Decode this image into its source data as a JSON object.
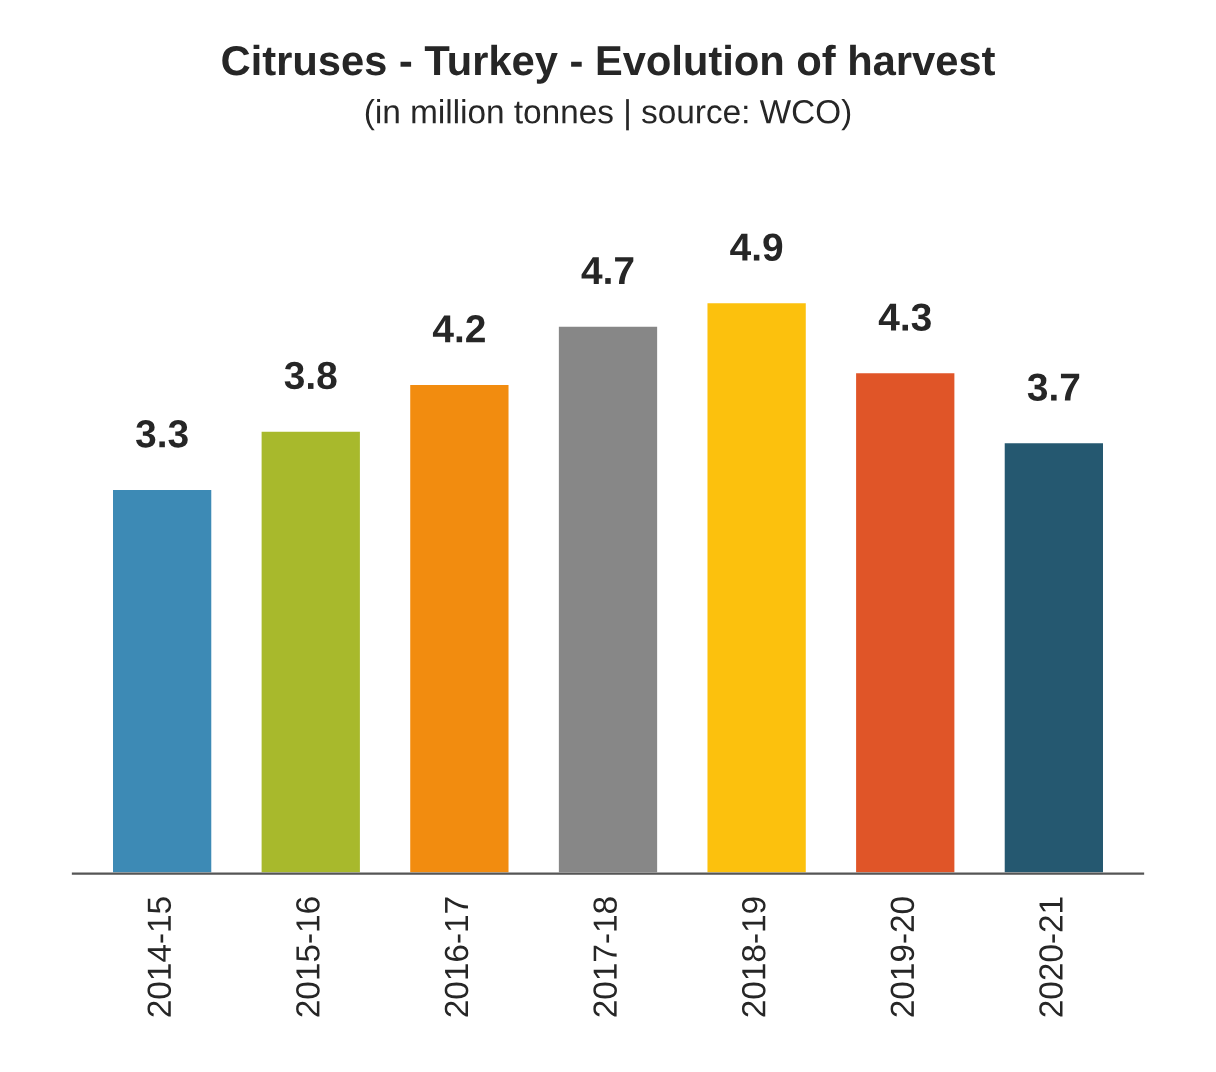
{
  "chart_data": {
    "type": "bar",
    "title": "Citruses - Turkey - Evolution of harvest",
    "subtitle": "(in million tonnes | source: WCO)",
    "categories": [
      "2014-15",
      "2015-16",
      "2016-17",
      "2017-18",
      "2018-19",
      "2019-20",
      "2020-21"
    ],
    "values": [
      3.3,
      3.8,
      4.2,
      4.7,
      4.9,
      4.3,
      3.7
    ],
    "colors": [
      "#3d8ab5",
      "#a8b92c",
      "#f28c0f",
      "#878787",
      "#fcc10d",
      "#e05528",
      "#255870"
    ],
    "data_labels": true,
    "tick_labels": "x",
    "grid": false,
    "legend": false
  }
}
